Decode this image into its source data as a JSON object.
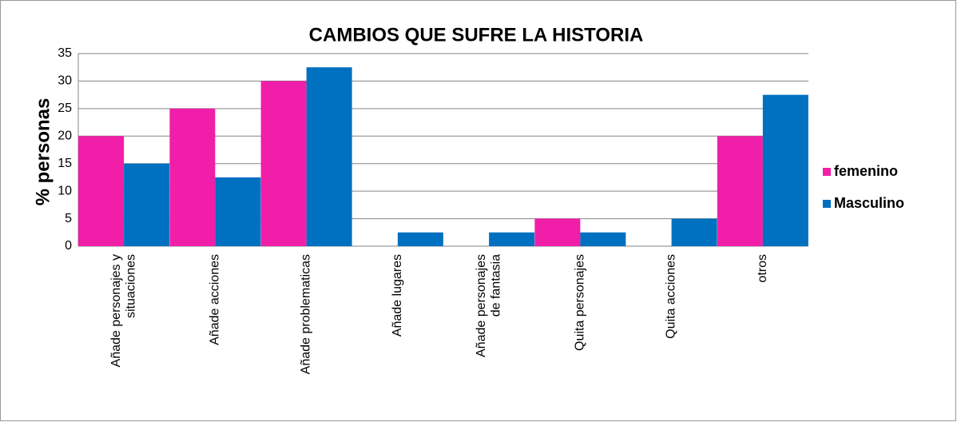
{
  "chart_data": {
    "type": "bar",
    "title": "CAMBIOS QUE SUFRE LA HISTORIA",
    "y_label": "% personas",
    "categories": [
      "Añade personajes y\nsituaciones",
      "Añade acciones",
      "Añade problematicas",
      "Añade lugares",
      "Añade personajes\nde fantasia",
      "Quita personajes",
      "Quita acciones",
      "otros"
    ],
    "series": [
      {
        "name": "femenino",
        "color": "#f01ea8",
        "values": [
          20,
          25,
          30,
          0,
          0,
          5,
          0,
          20
        ]
      },
      {
        "name": "Masculino",
        "color": "#0070c0",
        "values": [
          15,
          12.5,
          32.5,
          2.5,
          2.5,
          2.5,
          5,
          27.5
        ]
      }
    ],
    "ylim": [
      0,
      35
    ],
    "yticks": [
      0,
      5,
      10,
      15,
      20,
      25,
      30,
      35
    ],
    "grid": true,
    "legend": "right"
  }
}
